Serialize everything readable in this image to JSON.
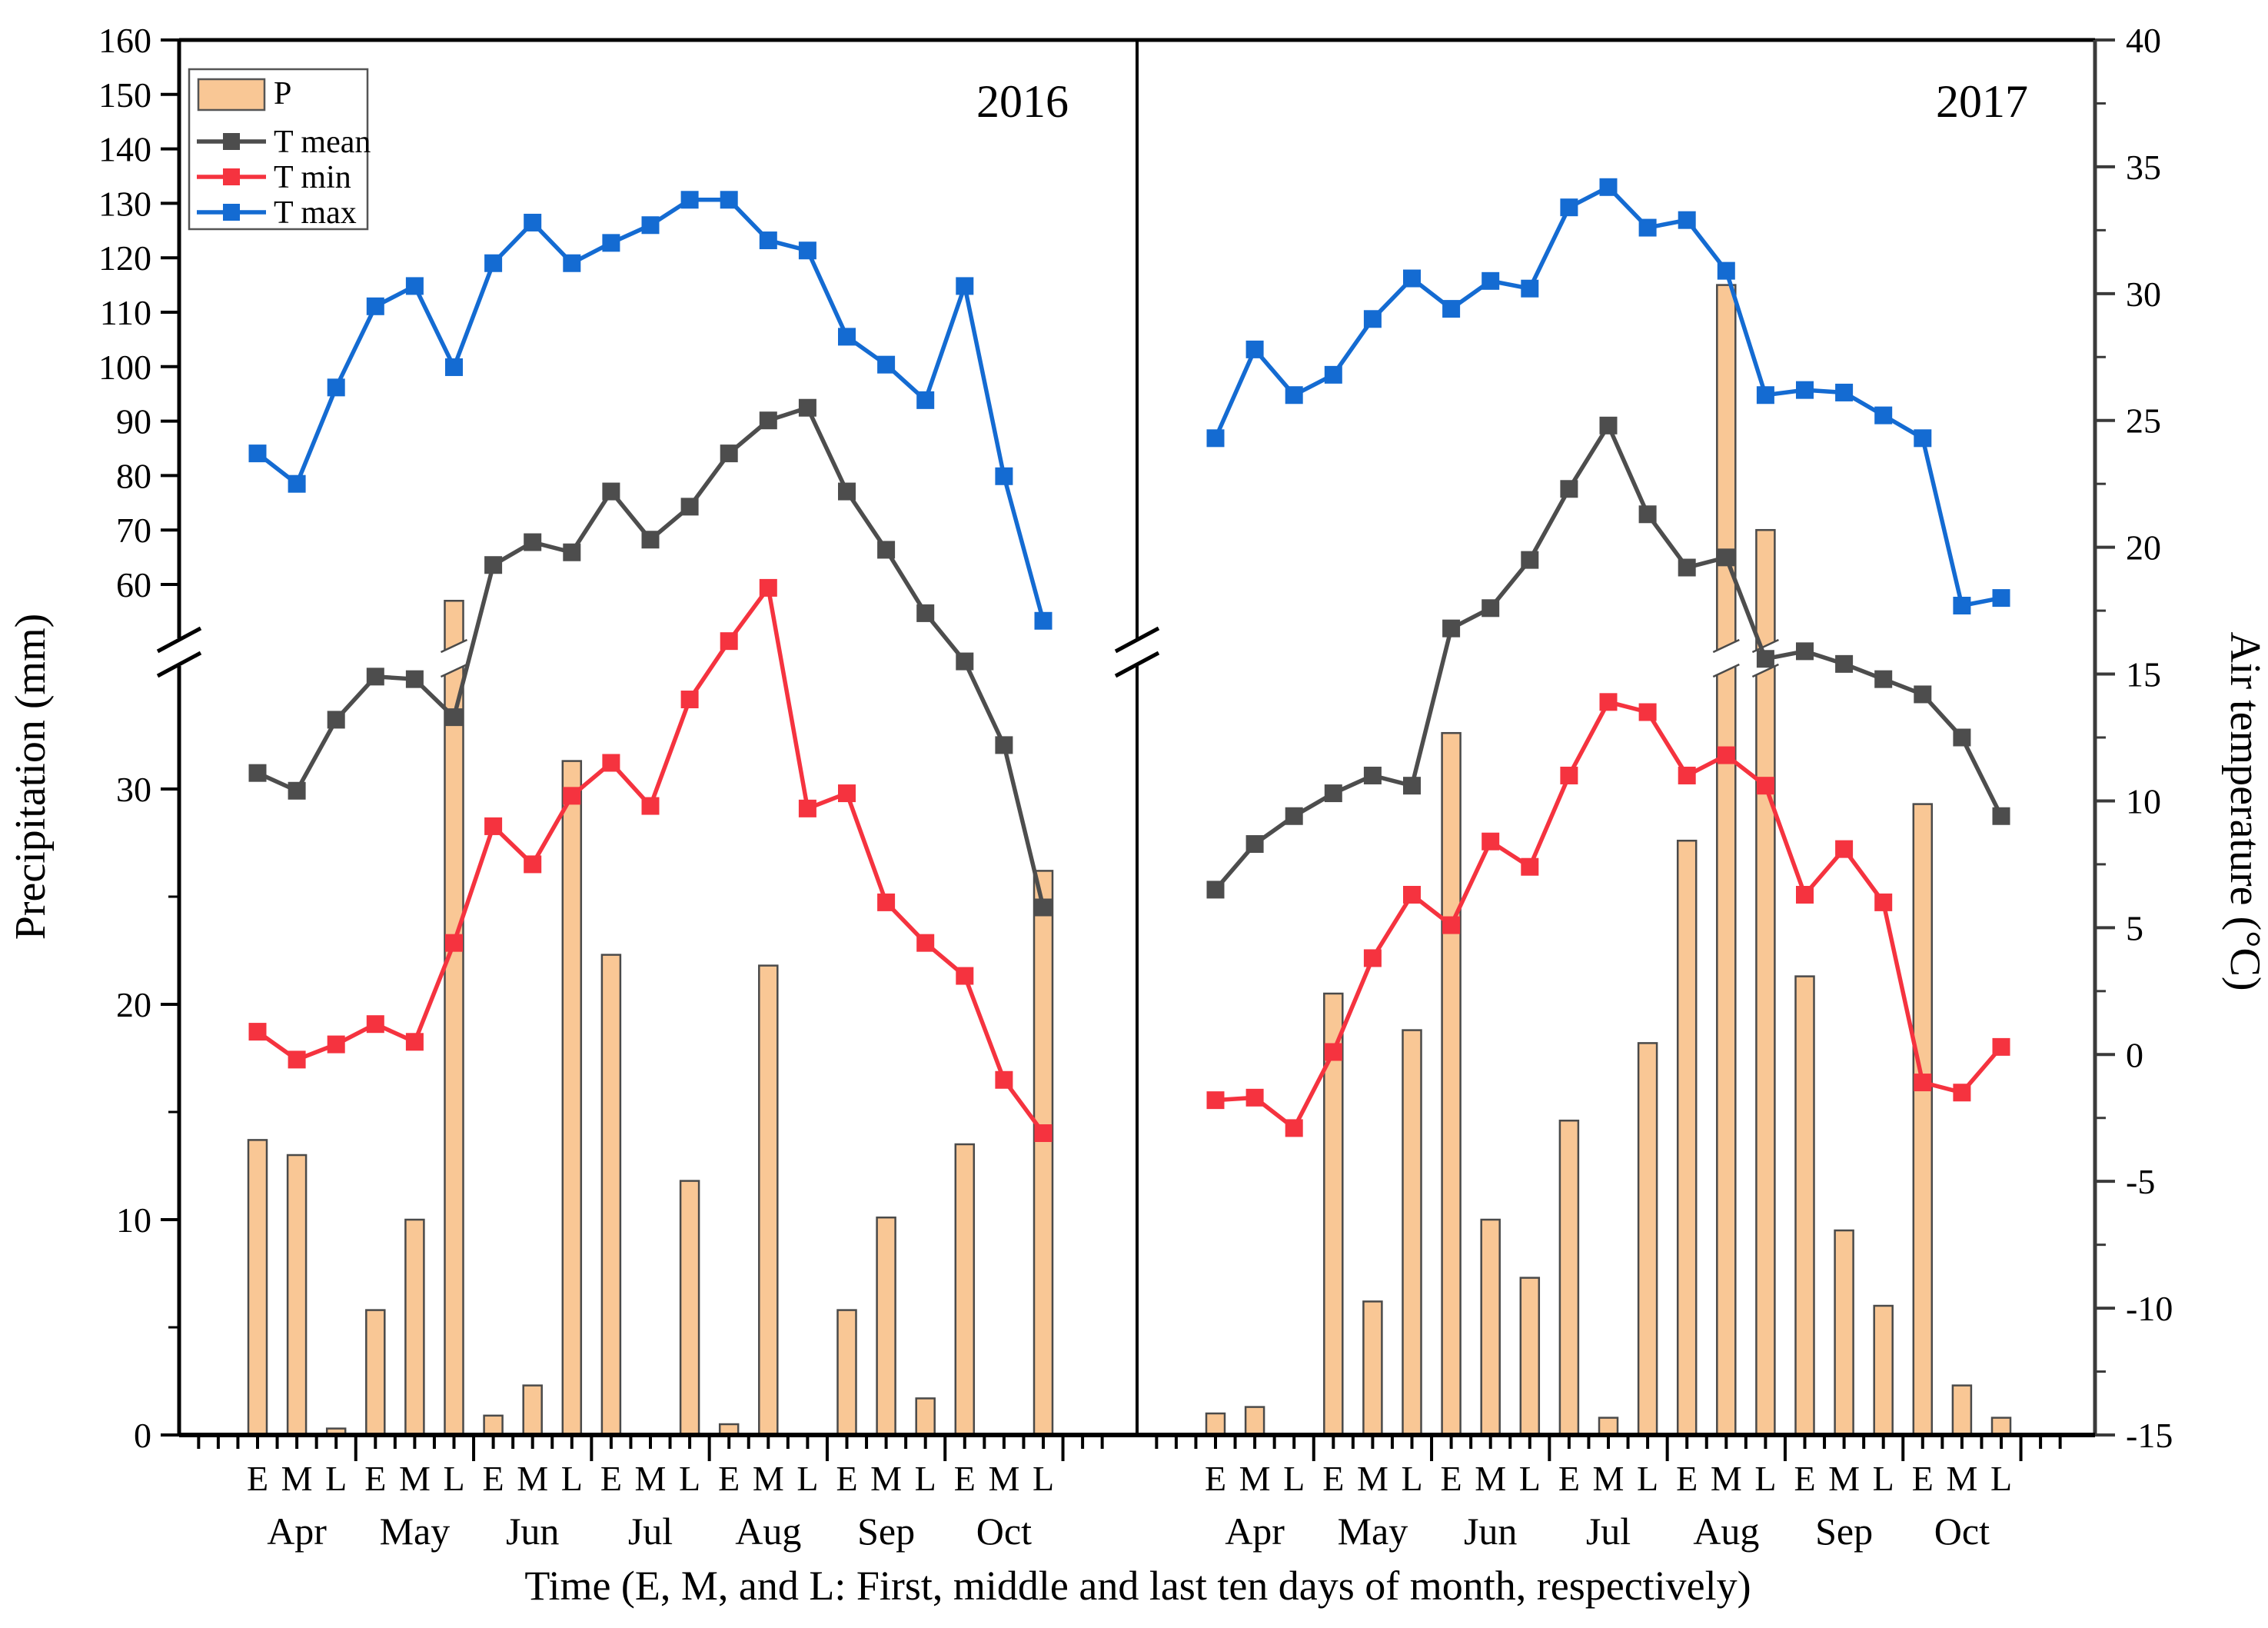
{
  "figure": {
    "panel_titles": [
      "2016",
      "2017"
    ],
    "caption": "Time (E, M, and L: First, middle and last ten days of month, respectively)",
    "left_axis_title": "Precipitation (mm)",
    "right_axis_title": "Air temperature (°C)",
    "legend": {
      "p_label": "P",
      "tmean_label": "T mean",
      "tmin_label": "T min",
      "tmax_label": "T max"
    }
  },
  "chart_data": {
    "type": "bar",
    "subtype": "bar-plus-lines-dual-axis",
    "months": [
      "Apr",
      "May",
      "Jun",
      "Jul",
      "Aug",
      "Sep",
      "Oct"
    ],
    "decades": [
      "E",
      "M",
      "L"
    ],
    "axes": {
      "left": {
        "label": "Precipitation (mm)",
        "has_break": true,
        "lower_major_ticks": [
          0,
          10,
          20,
          30
        ],
        "lower_minor_ticks": [
          5,
          15,
          25
        ],
        "upper_major_ticks": [
          60,
          70,
          80,
          90,
          100,
          110,
          120,
          130,
          140,
          150,
          160
        ],
        "lower_range_mm": [
          0,
          36
        ],
        "upper_range_mm": [
          60,
          160
        ]
      },
      "right": {
        "label": "Air temperature (°C)",
        "min": -15,
        "max": 40,
        "major_step": 5,
        "minor_step": 2.5
      },
      "x": {
        "slots_per_panel": 21,
        "grid": false,
        "legend_position": "top-left"
      }
    },
    "colors": {
      "bar_fill": "#F9C795",
      "bar_stroke": "#4A4A4A",
      "t_mean": "#4D4D4D",
      "t_min": "#F5333F",
      "t_max": "#146BD2",
      "frame": "#000000"
    },
    "panels": [
      {
        "year": "2016",
        "precip_mm": [
          13.7,
          13.0,
          0.3,
          5.8,
          10.0,
          57.0,
          0.9,
          2.3,
          31.3,
          22.3,
          0,
          11.8,
          0.5,
          21.8,
          0,
          5.8,
          10.1,
          1.7,
          13.5,
          0,
          26.2
        ],
        "t_mean_c": [
          11.1,
          10.4,
          13.2,
          14.9,
          14.8,
          13.3,
          19.3,
          20.2,
          19.8,
          22.2,
          20.3,
          21.6,
          23.7,
          25.0,
          25.5,
          22.2,
          19.9,
          17.4,
          15.5,
          12.2,
          5.8
        ],
        "t_min_c": [
          0.9,
          -0.2,
          0.4,
          1.2,
          0.5,
          4.4,
          9.0,
          7.5,
          10.2,
          11.5,
          9.8,
          14.0,
          16.3,
          18.4,
          9.7,
          10.3,
          6.0,
          4.4,
          3.1,
          -1.0,
          -3.1
        ],
        "t_max_c": [
          23.7,
          22.5,
          26.3,
          29.5,
          30.3,
          27.1,
          31.2,
          32.8,
          31.2,
          32.0,
          32.7,
          33.7,
          33.7,
          32.1,
          31.7,
          28.3,
          27.2,
          25.8,
          30.3,
          22.8,
          17.1
        ]
      },
      {
        "year": "2017",
        "precip_mm": [
          1.0,
          1.3,
          0,
          20.5,
          6.2,
          18.8,
          32.6,
          10.0,
          7.3,
          14.6,
          0.8,
          18.2,
          27.6,
          115.0,
          70.0,
          21.3,
          9.5,
          6.0,
          29.3,
          2.3,
          0.8
        ],
        "t_mean_c": [
          6.5,
          8.3,
          9.4,
          10.3,
          11.0,
          10.6,
          16.8,
          17.6,
          19.5,
          22.3,
          24.8,
          21.3,
          19.2,
          19.6,
          15.6,
          15.9,
          15.4,
          14.8,
          14.2,
          12.5,
          9.4
        ],
        "t_min_c": [
          -1.8,
          -1.7,
          -2.9,
          0.1,
          3.8,
          6.3,
          5.1,
          8.4,
          7.4,
          11.0,
          13.9,
          13.5,
          11.0,
          11.8,
          10.6,
          6.3,
          8.1,
          6.0,
          -1.1,
          -1.5,
          0.3
        ],
        "t_max_c": [
          24.3,
          27.8,
          26.0,
          26.8,
          29.0,
          30.6,
          29.4,
          30.5,
          30.2,
          33.4,
          34.2,
          32.6,
          32.9,
          30.9,
          26.0,
          26.2,
          26.1,
          25.2,
          24.3,
          17.7,
          18.0
        ]
      }
    ]
  }
}
